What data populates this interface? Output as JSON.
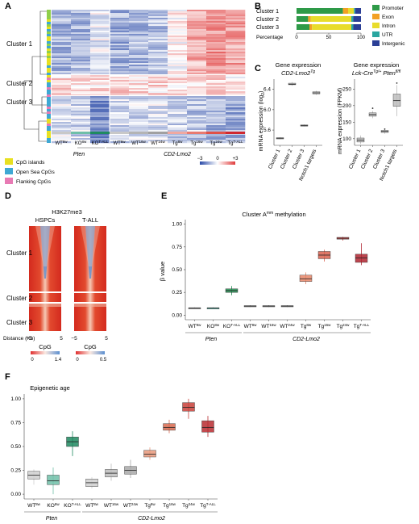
{
  "panels": {
    "A": {
      "letter": "A",
      "cluster_labels": [
        "Cluster 1",
        "Cluster 2",
        "Cluster 3"
      ],
      "sample_labels": [
        "WT",
        "KO",
        "KO",
        "WT",
        "WT",
        "WT",
        "Tg",
        "Tg",
        "Tg",
        "Tg"
      ],
      "sample_superscripts": [
        "8w",
        "8w",
        "T-ALL",
        "8w",
        "16w",
        "24w",
        "8w",
        "16w",
        "24w",
        "T-ALL"
      ],
      "group_labels": [
        "Pten",
        "CD2-Lmo2"
      ],
      "scale_ticks": [
        "−3",
        "0",
        "+3"
      ],
      "legend": [
        {
          "label": "CpG islands",
          "color": "#e8e020"
        },
        {
          "label": "Open Sea CpGs",
          "color": "#3ea8d4"
        },
        {
          "label": "Flanking CpGs",
          "color": "#e87ab4"
        }
      ]
    },
    "B": {
      "letter": "B",
      "xlabel": "Percentage",
      "ticks": [
        "0",
        "50",
        "100"
      ],
      "legend": [
        {
          "label": "Promoter",
          "color": "#2e9a48"
        },
        {
          "label": "Exon",
          "color": "#f2a024"
        },
        {
          "label": "Intron",
          "color": "#e8dc2c"
        },
        {
          "label": "UTR",
          "color": "#2aa6a0"
        },
        {
          "label": "Intergenic",
          "color": "#2b3f96"
        }
      ]
    },
    "C": {
      "letter": "C",
      "left_title": "Gene expression",
      "left_subtitle": "CD2-Lmo2",
      "left_subtitle_sup": "Tg",
      "left_ylabel": "mRNA expression (log",
      "left_ylabel_sub": "2",
      "left_ylabel_end": ")",
      "right_title": "Gene expression",
      "right_subtitle": "Lck-Cre",
      "right_subtitle_sup": "Tg/+",
      "right_subtitle2": " Pten",
      "right_subtitle2_sup": "fl/fl",
      "right_ylabel": "mRNA expression (FPKM)"
    },
    "D": {
      "letter": "D",
      "title": "H3K27me3",
      "columns": [
        "HSPCs",
        "T-ALL"
      ],
      "cluster_labels": [
        "Cluster 1",
        "Cluster 2",
        "Cluster 3"
      ],
      "distance_label": "Distance (Kb)",
      "distance_ticks": [
        "−5",
        "5",
        "−5",
        "5"
      ],
      "cpg_label": "CpG",
      "cpg_left_ticks": [
        "0",
        "1.4"
      ],
      "cpg_right_ticks": [
        "0",
        "0.5"
      ]
    },
    "E": {
      "letter": "E",
      "title": "Cluster A",
      "title_sup": "mm",
      "title_end": " methylation",
      "ylabel": "β value",
      "group_labels": [
        "Pten",
        "CD2-Lmo2"
      ]
    },
    "F": {
      "letter": "F",
      "title": "Epigenetic age",
      "group_labels": [
        "Pten",
        "CD2-Lmo2"
      ]
    }
  },
  "chart_data": [
    {
      "panel": "A",
      "type": "heatmap",
      "rows": [
        "Cluster 1",
        "Cluster 2",
        "Cluster 3"
      ],
      "columns": [
        "WT 8w",
        "KO 8w",
        "KO T-ALL",
        "WT 8w",
        "WT 16w",
        "WT 24w",
        "Tg 8w",
        "Tg 16w",
        "Tg 24w",
        "Tg T-ALL"
      ],
      "color_scale": {
        "min": -3,
        "mid": 0,
        "max": 3,
        "low_color": "#2b4ba8",
        "mid_color": "#ffffff",
        "high_color": "#e03c3c"
      },
      "values": [
        [
          -1.2,
          -1.1,
          -0.3,
          -1.3,
          -1.1,
          -1.0,
          0.2,
          1.2,
          1.7,
          1.4
        ],
        [
          0.6,
          0.6,
          0.5,
          0.7,
          0.6,
          0.6,
          0.6,
          0.7,
          0.7,
          0.2
        ],
        [
          -0.5,
          -0.6,
          -1.8,
          -0.6,
          -0.6,
          -0.5,
          -0.7,
          -0.9,
          -1.2,
          -1.4
        ]
      ]
    },
    {
      "panel": "B",
      "type": "bar",
      "orientation": "horizontal",
      "stacked": true,
      "categories": [
        "Cluster 1",
        "Cluster 2",
        "Cluster 3"
      ],
      "series": [
        {
          "name": "Promoter",
          "values": [
            72,
            18,
            20
          ]
        },
        {
          "name": "Exon",
          "values": [
            8,
            4,
            4
          ]
        },
        {
          "name": "Intron",
          "values": [
            9,
            63,
            61
          ]
        },
        {
          "name": "UTR",
          "values": [
            2,
            3,
            3
          ]
        },
        {
          "name": "Intergenic",
          "values": [
            9,
            12,
            12
          ]
        }
      ],
      "xlim": [
        0,
        100
      ]
    },
    {
      "panel": "C-left",
      "type": "box",
      "categories": [
        "Cluster 1",
        "Cluster 2",
        "Cluster 3",
        "Notch1 targets"
      ],
      "ylim": [
        5.3,
        6.6
      ],
      "yticks": [
        5.6,
        6.0,
        6.4
      ],
      "colors": [
        "#bdbdbd",
        "#bdbdbd",
        "#bdbdbd",
        "#bdbdbd"
      ],
      "boxes": [
        {
          "min": 5.42,
          "q1": 5.43,
          "median": 5.44,
          "q3": 5.45,
          "max": 5.46
        },
        {
          "min": 6.47,
          "q1": 6.49,
          "median": 6.5,
          "q3": 6.52,
          "max": 6.54
        },
        {
          "min": 5.67,
          "q1": 5.68,
          "median": 5.69,
          "q3": 5.7,
          "max": 5.71
        },
        {
          "min": 6.29,
          "q1": 6.31,
          "median": 6.33,
          "q3": 6.35,
          "max": 6.37
        }
      ]
    },
    {
      "panel": "C-right",
      "type": "box",
      "categories": [
        "Cluster 1",
        "Cluster 2",
        "Cluster 3",
        "Notch1 targets"
      ],
      "ylim": [
        80,
        280
      ],
      "yticks": [
        100,
        150,
        200,
        250
      ],
      "colors": [
        "#bdbdbd",
        "#bdbdbd",
        "#bdbdbd",
        "#bdbdbd"
      ],
      "boxes": [
        {
          "min": 84,
          "q1": 90,
          "median": 96,
          "q3": 102,
          "max": 110
        },
        {
          "min": 162,
          "q1": 168,
          "median": 173,
          "q3": 178,
          "max": 184,
          "outliers": [
            192
          ]
        },
        {
          "min": 115,
          "q1": 119,
          "median": 122,
          "q3": 125,
          "max": 128,
          "outliers": [
            129
          ]
        },
        {
          "min": 168,
          "q1": 198,
          "median": 215,
          "q3": 235,
          "max": 262,
          "outliers": [
            268
          ]
        }
      ]
    },
    {
      "panel": "D",
      "type": "heatmap",
      "columns": [
        "HSPCs",
        "T-ALL"
      ],
      "rows": [
        "Cluster 1",
        "Cluster 2",
        "Cluster 3"
      ],
      "xlim": [
        -5,
        5
      ],
      "color_scale_left": [
        0,
        1.4
      ],
      "color_scale_right": [
        0,
        0.5
      ],
      "low_color": "#e03030",
      "high_color": "#5b8fd0"
    },
    {
      "panel": "E",
      "type": "box",
      "categories": [
        "WT 8w",
        "KO 8w",
        "KO T-ALL",
        "WT 8w",
        "WT 16w",
        "WT 24w",
        "Tg 8w",
        "Tg 16w",
        "Tg 24w",
        "Tg T-ALL"
      ],
      "ylabel": "β value",
      "ylim": [
        -0.05,
        1.05
      ],
      "yticks": [
        0.0,
        0.25,
        0.5,
        0.75,
        1.0
      ],
      "colors": [
        "#9e9e9e",
        "#3aa898",
        "#1f8a4e",
        "#9e9e9e",
        "#9e9e9e",
        "#9e9e9e",
        "#e8876a",
        "#d8604e",
        "#c83c3c",
        "#b02430"
      ],
      "boxes": [
        {
          "min": 0.075,
          "q1": 0.078,
          "median": 0.08,
          "q3": 0.082,
          "max": 0.085
        },
        {
          "min": 0.075,
          "q1": 0.078,
          "median": 0.08,
          "q3": 0.082,
          "max": 0.085
        },
        {
          "min": 0.22,
          "q1": 0.25,
          "median": 0.27,
          "q3": 0.29,
          "max": 0.32
        },
        {
          "min": 0.09,
          "q1": 0.095,
          "median": 0.1,
          "q3": 0.105,
          "max": 0.11
        },
        {
          "min": 0.09,
          "q1": 0.095,
          "median": 0.1,
          "q3": 0.105,
          "max": 0.11
        },
        {
          "min": 0.09,
          "q1": 0.095,
          "median": 0.1,
          "q3": 0.105,
          "max": 0.11
        },
        {
          "min": 0.34,
          "q1": 0.37,
          "median": 0.4,
          "q3": 0.44,
          "max": 0.47
        },
        {
          "min": 0.59,
          "q1": 0.62,
          "median": 0.66,
          "q3": 0.7,
          "max": 0.72
        },
        {
          "min": 0.82,
          "q1": 0.835,
          "median": 0.845,
          "q3": 0.855,
          "max": 0.86
        },
        {
          "min": 0.55,
          "q1": 0.58,
          "median": 0.63,
          "q3": 0.67,
          "max": 0.79
        }
      ]
    },
    {
      "panel": "F",
      "type": "box",
      "categories": [
        "WT 8w",
        "KO 8w",
        "KO T-ALL",
        "WT 8w",
        "WT 16w",
        "WT 24w",
        "Tg 8w",
        "Tg 16w",
        "Tg 24w",
        "Tg T-ALL"
      ],
      "ylim": [
        -0.05,
        1.05
      ],
      "yticks": [
        0.0,
        0.25,
        0.5,
        0.75,
        1.0
      ],
      "colors": [
        "#cfcfcf",
        "#6fbfa8",
        "#1f8a60",
        "#cfcfcf",
        "#bdbdbd",
        "#a8a8a8",
        "#e8987a",
        "#d8684e",
        "#c84038",
        "#b82c30"
      ],
      "boxes": [
        {
          "min": 0.1,
          "q1": 0.16,
          "median": 0.2,
          "q3": 0.24,
          "max": 0.26
        },
        {
          "min": 0.0,
          "q1": 0.1,
          "median": 0.14,
          "q3": 0.2,
          "max": 0.28
        },
        {
          "min": 0.4,
          "q1": 0.5,
          "median": 0.55,
          "q3": 0.6,
          "max": 0.66
        },
        {
          "min": 0.06,
          "q1": 0.08,
          "median": 0.12,
          "q3": 0.16,
          "max": 0.18
        },
        {
          "min": 0.14,
          "q1": 0.18,
          "median": 0.22,
          "q3": 0.26,
          "max": 0.32
        },
        {
          "min": 0.17,
          "q1": 0.21,
          "median": 0.25,
          "q3": 0.29,
          "max": 0.36
        },
        {
          "min": 0.36,
          "q1": 0.39,
          "median": 0.42,
          "q3": 0.46,
          "max": 0.49
        },
        {
          "min": 0.64,
          "q1": 0.67,
          "median": 0.7,
          "q3": 0.74,
          "max": 0.78
        },
        {
          "min": 0.79,
          "q1": 0.87,
          "median": 0.91,
          "q3": 0.96,
          "max": 1.0
        },
        {
          "min": 0.6,
          "q1": 0.65,
          "median": 0.7,
          "q3": 0.77,
          "max": 0.82
        }
      ]
    }
  ]
}
